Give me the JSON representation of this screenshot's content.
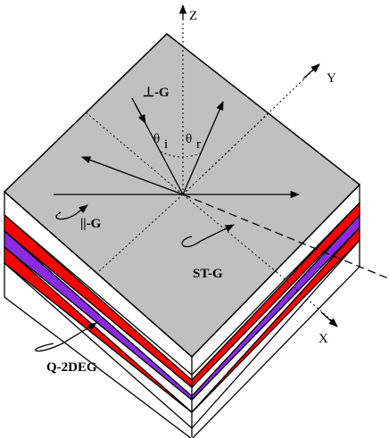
{
  "axes": {
    "z": "Z",
    "y": "Y",
    "x": "X"
  },
  "labels": {
    "perp_g": "⊥-G",
    "theta_i": "θ",
    "theta_i_sub": "i",
    "theta_r": "θ",
    "theta_r_sub": "r",
    "par_g": "||-G",
    "st_g": "ST-G",
    "q2deg": "Q-2DEG"
  }
}
